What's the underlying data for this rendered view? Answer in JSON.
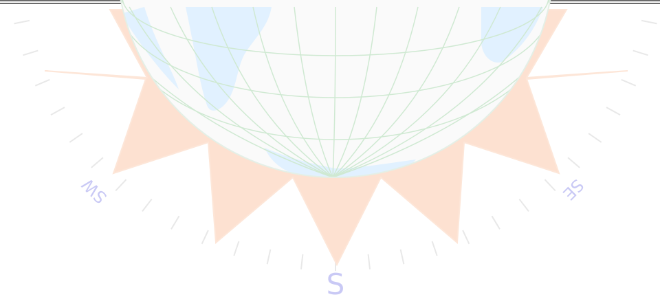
{
  "compass": {
    "labels": {
      "south": "S",
      "southwest": "SW",
      "southeast": "SE"
    }
  },
  "colors": {
    "sun_rays": "#fde1d1",
    "ocean": "#dcefff",
    "land": "#fafafa",
    "graticule": "#cfe9d2",
    "compass_text": "#c9c9f5",
    "ticks": "#e8e8e8",
    "frame": "#6c6c6c"
  },
  "icons": [
    "globe-icon",
    "sun-rays-icon",
    "compass-rose-icon"
  ]
}
